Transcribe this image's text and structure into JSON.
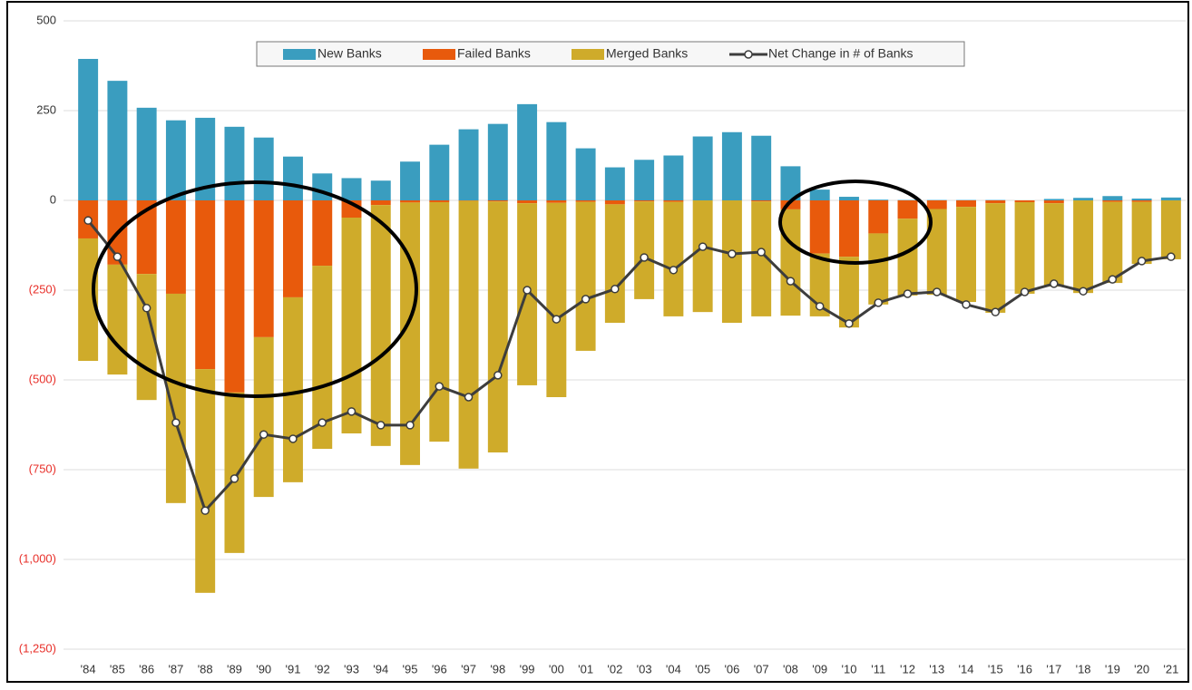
{
  "chart_data": {
    "type": "stacked_bar_line",
    "categories": [
      "'84",
      "'85",
      "'86",
      "'87",
      "'88",
      "'89",
      "'90",
      "'91",
      "'92",
      "'93",
      "'94",
      "'95",
      "'96",
      "'97",
      "'98",
      "'99",
      "'00",
      "'01",
      "'02",
      "'03",
      "'04",
      "'05",
      "'06",
      "'07",
      "'08",
      "'09",
      "'10",
      "'11",
      "'12",
      "'13",
      "'14",
      "'15",
      "'16",
      "'17",
      "'18",
      "'19",
      "'20",
      "'21"
    ],
    "series": [
      {
        "name": "New Banks",
        "color": "#3a9dbf",
        "kind": "bar",
        "values": [
          394,
          333,
          258,
          223,
          230,
          205,
          175,
          122,
          75,
          62,
          55,
          108,
          155,
          198,
          213,
          268,
          218,
          145,
          92,
          113,
          125,
          178,
          190,
          180,
          95,
          30,
          10,
          2,
          1,
          1,
          1,
          1,
          0,
          4,
          7,
          12,
          5,
          8
        ]
      },
      {
        "name": "Failed Banks",
        "color": "#e85a0c",
        "kind": "bar",
        "values": [
          -106,
          -179,
          -205,
          -260,
          -470,
          -535,
          -381,
          -270,
          -182,
          -48,
          -13,
          -6,
          -5,
          -1,
          -3,
          -8,
          -7,
          -4,
          -11,
          -3,
          -4,
          0,
          0,
          -3,
          -25,
          -148,
          -157,
          -92,
          -51,
          -24,
          -18,
          -8,
          -5,
          -8,
          0,
          -4,
          -4,
          0
        ]
      },
      {
        "name": "Merged Banks",
        "color": "#cfab2a",
        "kind": "bar",
        "values": [
          -341,
          -306,
          -351,
          -583,
          -623,
          -447,
          -445,
          -515,
          -510,
          -601,
          -671,
          -731,
          -667,
          -746,
          -699,
          -507,
          -541,
          -415,
          -330,
          -272,
          -319,
          -311,
          -341,
          -320,
          -296,
          -175,
          -197,
          -198,
          -214,
          -239,
          -265,
          -305,
          -255,
          -232,
          -258,
          -226,
          -173,
          -164
        ]
      },
      {
        "name": "Net Change in # of Banks",
        "color": "#3d3d3d",
        "kind": "line",
        "values": [
          -56,
          -157,
          -300,
          -619,
          -864,
          -775,
          -652,
          -664,
          -619,
          -588,
          -626,
          -626,
          -518,
          -548,
          -487,
          -250,
          -331,
          -275,
          -247,
          -159,
          -194,
          -129,
          -149,
          -144,
          -225,
          -295,
          -343,
          -285,
          -260,
          -255,
          -290,
          -311,
          -255,
          -232,
          -253,
          -220,
          -169,
          -157
        ]
      }
    ],
    "ylim": [
      -1250,
      500
    ],
    "yticks": [
      500,
      250,
      0,
      {
        "value": -250,
        "label": "(250)"
      },
      {
        "value": -500,
        "label": "(500)"
      },
      {
        "value": -750,
        "label": "(750)"
      },
      {
        "value": -1000,
        "label": "(1,000)"
      },
      {
        "value": -1250,
        "label": "(1,250)"
      }
    ],
    "negative_tick_color": "#e8302a",
    "grid": true,
    "legend": "top"
  }
}
